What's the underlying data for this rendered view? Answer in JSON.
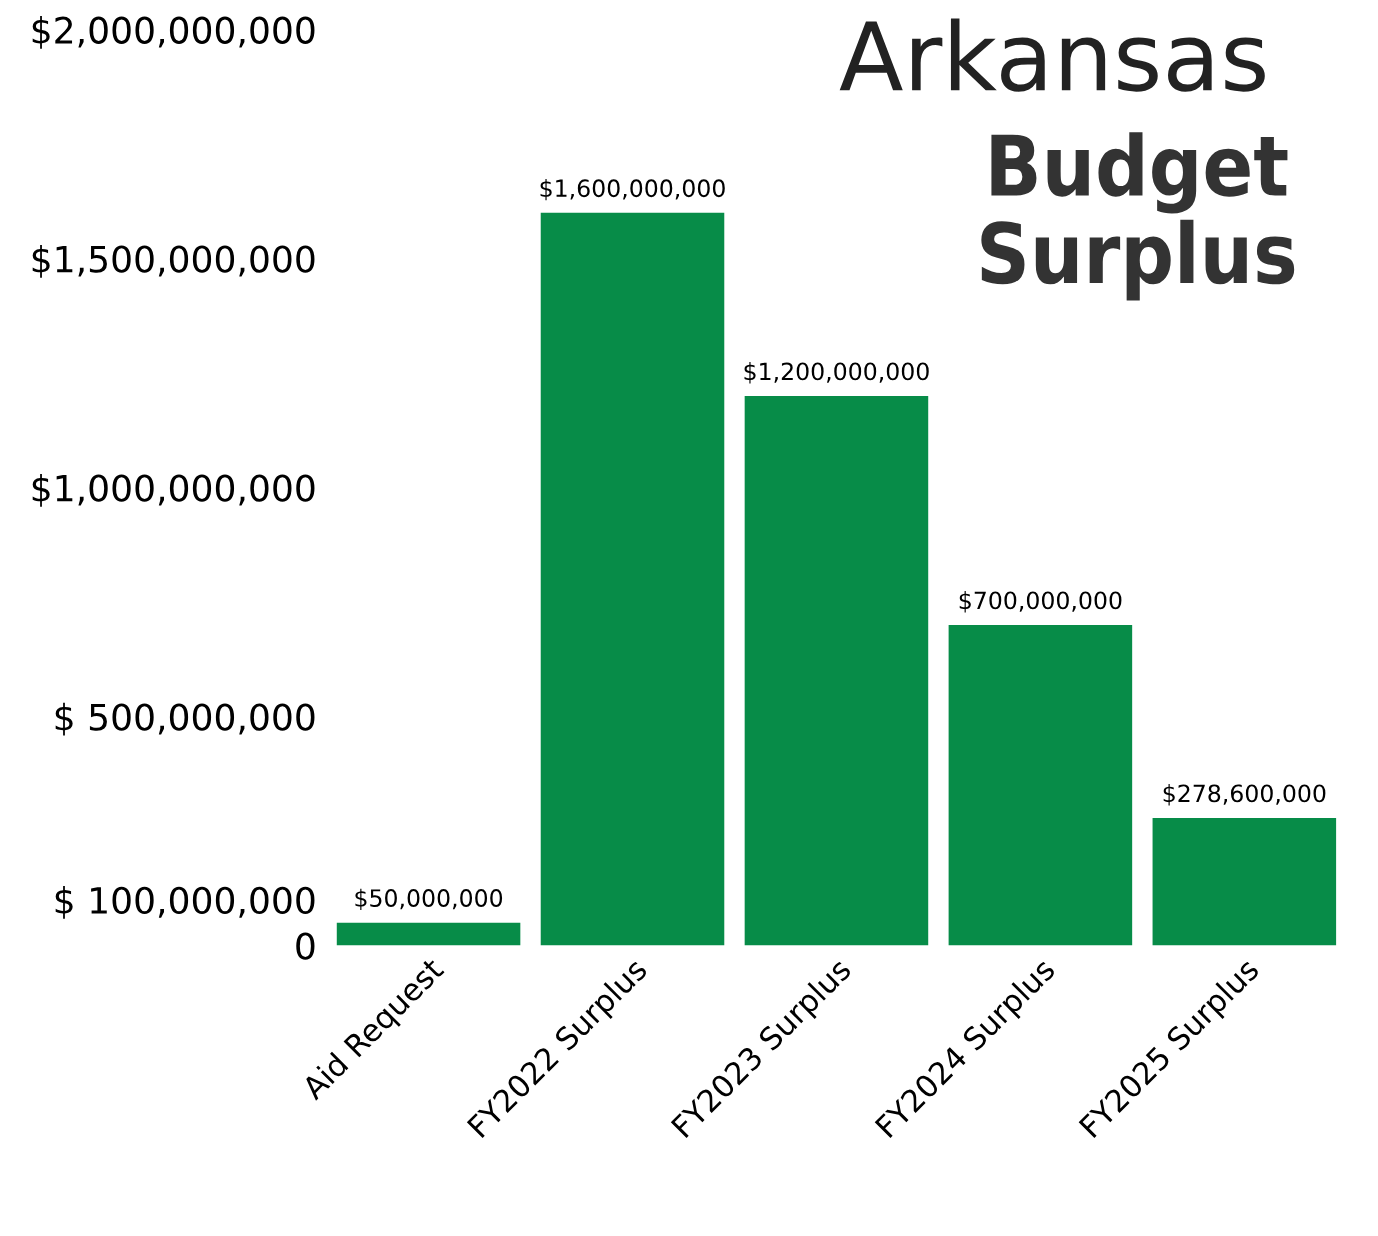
{
  "chart_data": {
    "type": "bar",
    "title": "Arkansas",
    "subtitle": "Budget Surplus",
    "categories": [
      "Aid Request",
      "FY2022 Surplus",
      "FY2023 Surplus",
      "FY2024 Surplus",
      "FY2025 Surplus"
    ],
    "values": [
      50000000,
      1600000000,
      1200000000,
      700000000,
      278600000
    ],
    "value_labels": [
      "$50,000,000",
      "$1,600,000,000",
      "$1,200,000,000",
      "$700,000,000",
      "$278,600,000"
    ],
    "color": "#078c48",
    "ylim": [
      0,
      2000000000
    ],
    "yticks": [
      {
        "value": 0,
        "label": "0"
      },
      {
        "value": 100000000,
        "label": "$ 100,000,000"
      },
      {
        "value": 500000000,
        "label": "$ 500,000,000"
      },
      {
        "value": 1000000000,
        "label": "$1,000,000,000"
      },
      {
        "value": 1500000000,
        "label": "$1,500,000,000"
      },
      {
        "value": 2000000000,
        "label": "$2,000,000,000"
      }
    ],
    "grid": false,
    "legend": false
  }
}
